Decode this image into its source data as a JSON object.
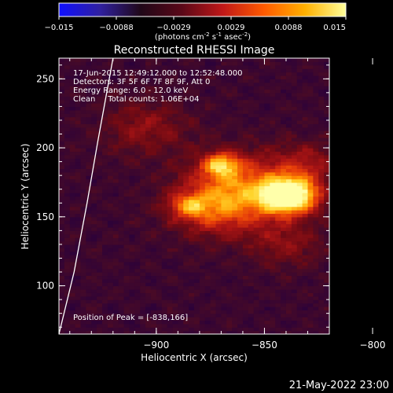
{
  "colorbar": {
    "ticks": [
      "-0.015",
      "-0.0088",
      "-0.0029",
      "0.0029",
      "0.0088",
      "0.015"
    ],
    "unit_main": "(photons cm",
    "unit_sup1": "-2",
    "unit_mid1": " s",
    "unit_sup2": "-1",
    "unit_mid2": " asec",
    "unit_sup3": "-2",
    "unit_end": ")",
    "colors": [
      "#1010ff",
      "#3020a0",
      "#200818",
      "#5a0818",
      "#c01818",
      "#ff5a00",
      "#ffb000",
      "#ffff9a"
    ]
  },
  "chart_data": {
    "type": "heatmap",
    "title": "Reconstructed RHESSI Image",
    "xlabel": "Heliocentric X (arcsec)",
    "ylabel": "Heliocentric Y (arcsec)",
    "xlim": [
      -945,
      -820
    ],
    "ylim": [
      65,
      265
    ],
    "xticks": [
      -900,
      -850,
      -800
    ],
    "yticks": [
      100,
      150,
      200,
      250
    ],
    "xtick_labels": [
      "−900",
      "−850",
      "−800"
    ],
    "ytick_labels": [
      "100",
      "150",
      "200",
      "250"
    ],
    "peak": [
      -838,
      166
    ],
    "peak_label": "Position of Peak = [-838,166]",
    "annotations": [
      "17-Jun-2015 12:49:12.000 to 12:52:48.000",
      "Detectors: 3F 5F 6F 7F 8F 9F, Att 0",
      "Energy Range: 6.0 - 12.0 keV",
      "Clean     Total counts: 1.06E+04"
    ],
    "sources": [
      {
        "x": -838,
        "y": 166,
        "amp": 1.0,
        "sigma": 9
      },
      {
        "x": -860,
        "y": 170,
        "amp": 0.55,
        "sigma": 18
      },
      {
        "x": -870,
        "y": 188,
        "amp": 0.55,
        "sigma": 6
      },
      {
        "x": -885,
        "y": 158,
        "amp": 0.35,
        "sigma": 6
      },
      {
        "x": -875,
        "y": 155,
        "amp": 0.3,
        "sigma": 14
      },
      {
        "x": -840,
        "y": 130,
        "amp": 0.22,
        "sigma": 12
      },
      {
        "x": -905,
        "y": 215,
        "amp": 0.25,
        "sigma": 14
      },
      {
        "x": -830,
        "y": 190,
        "amp": 0.25,
        "sigma": 10
      }
    ],
    "limb_curve": [
      [
        -945,
        65
      ],
      [
        -938,
        110
      ],
      [
        -932,
        160
      ],
      [
        -927,
        205
      ],
      [
        -920,
        265
      ]
    ]
  },
  "footer": {
    "date": "21-May-2022 23:00"
  }
}
